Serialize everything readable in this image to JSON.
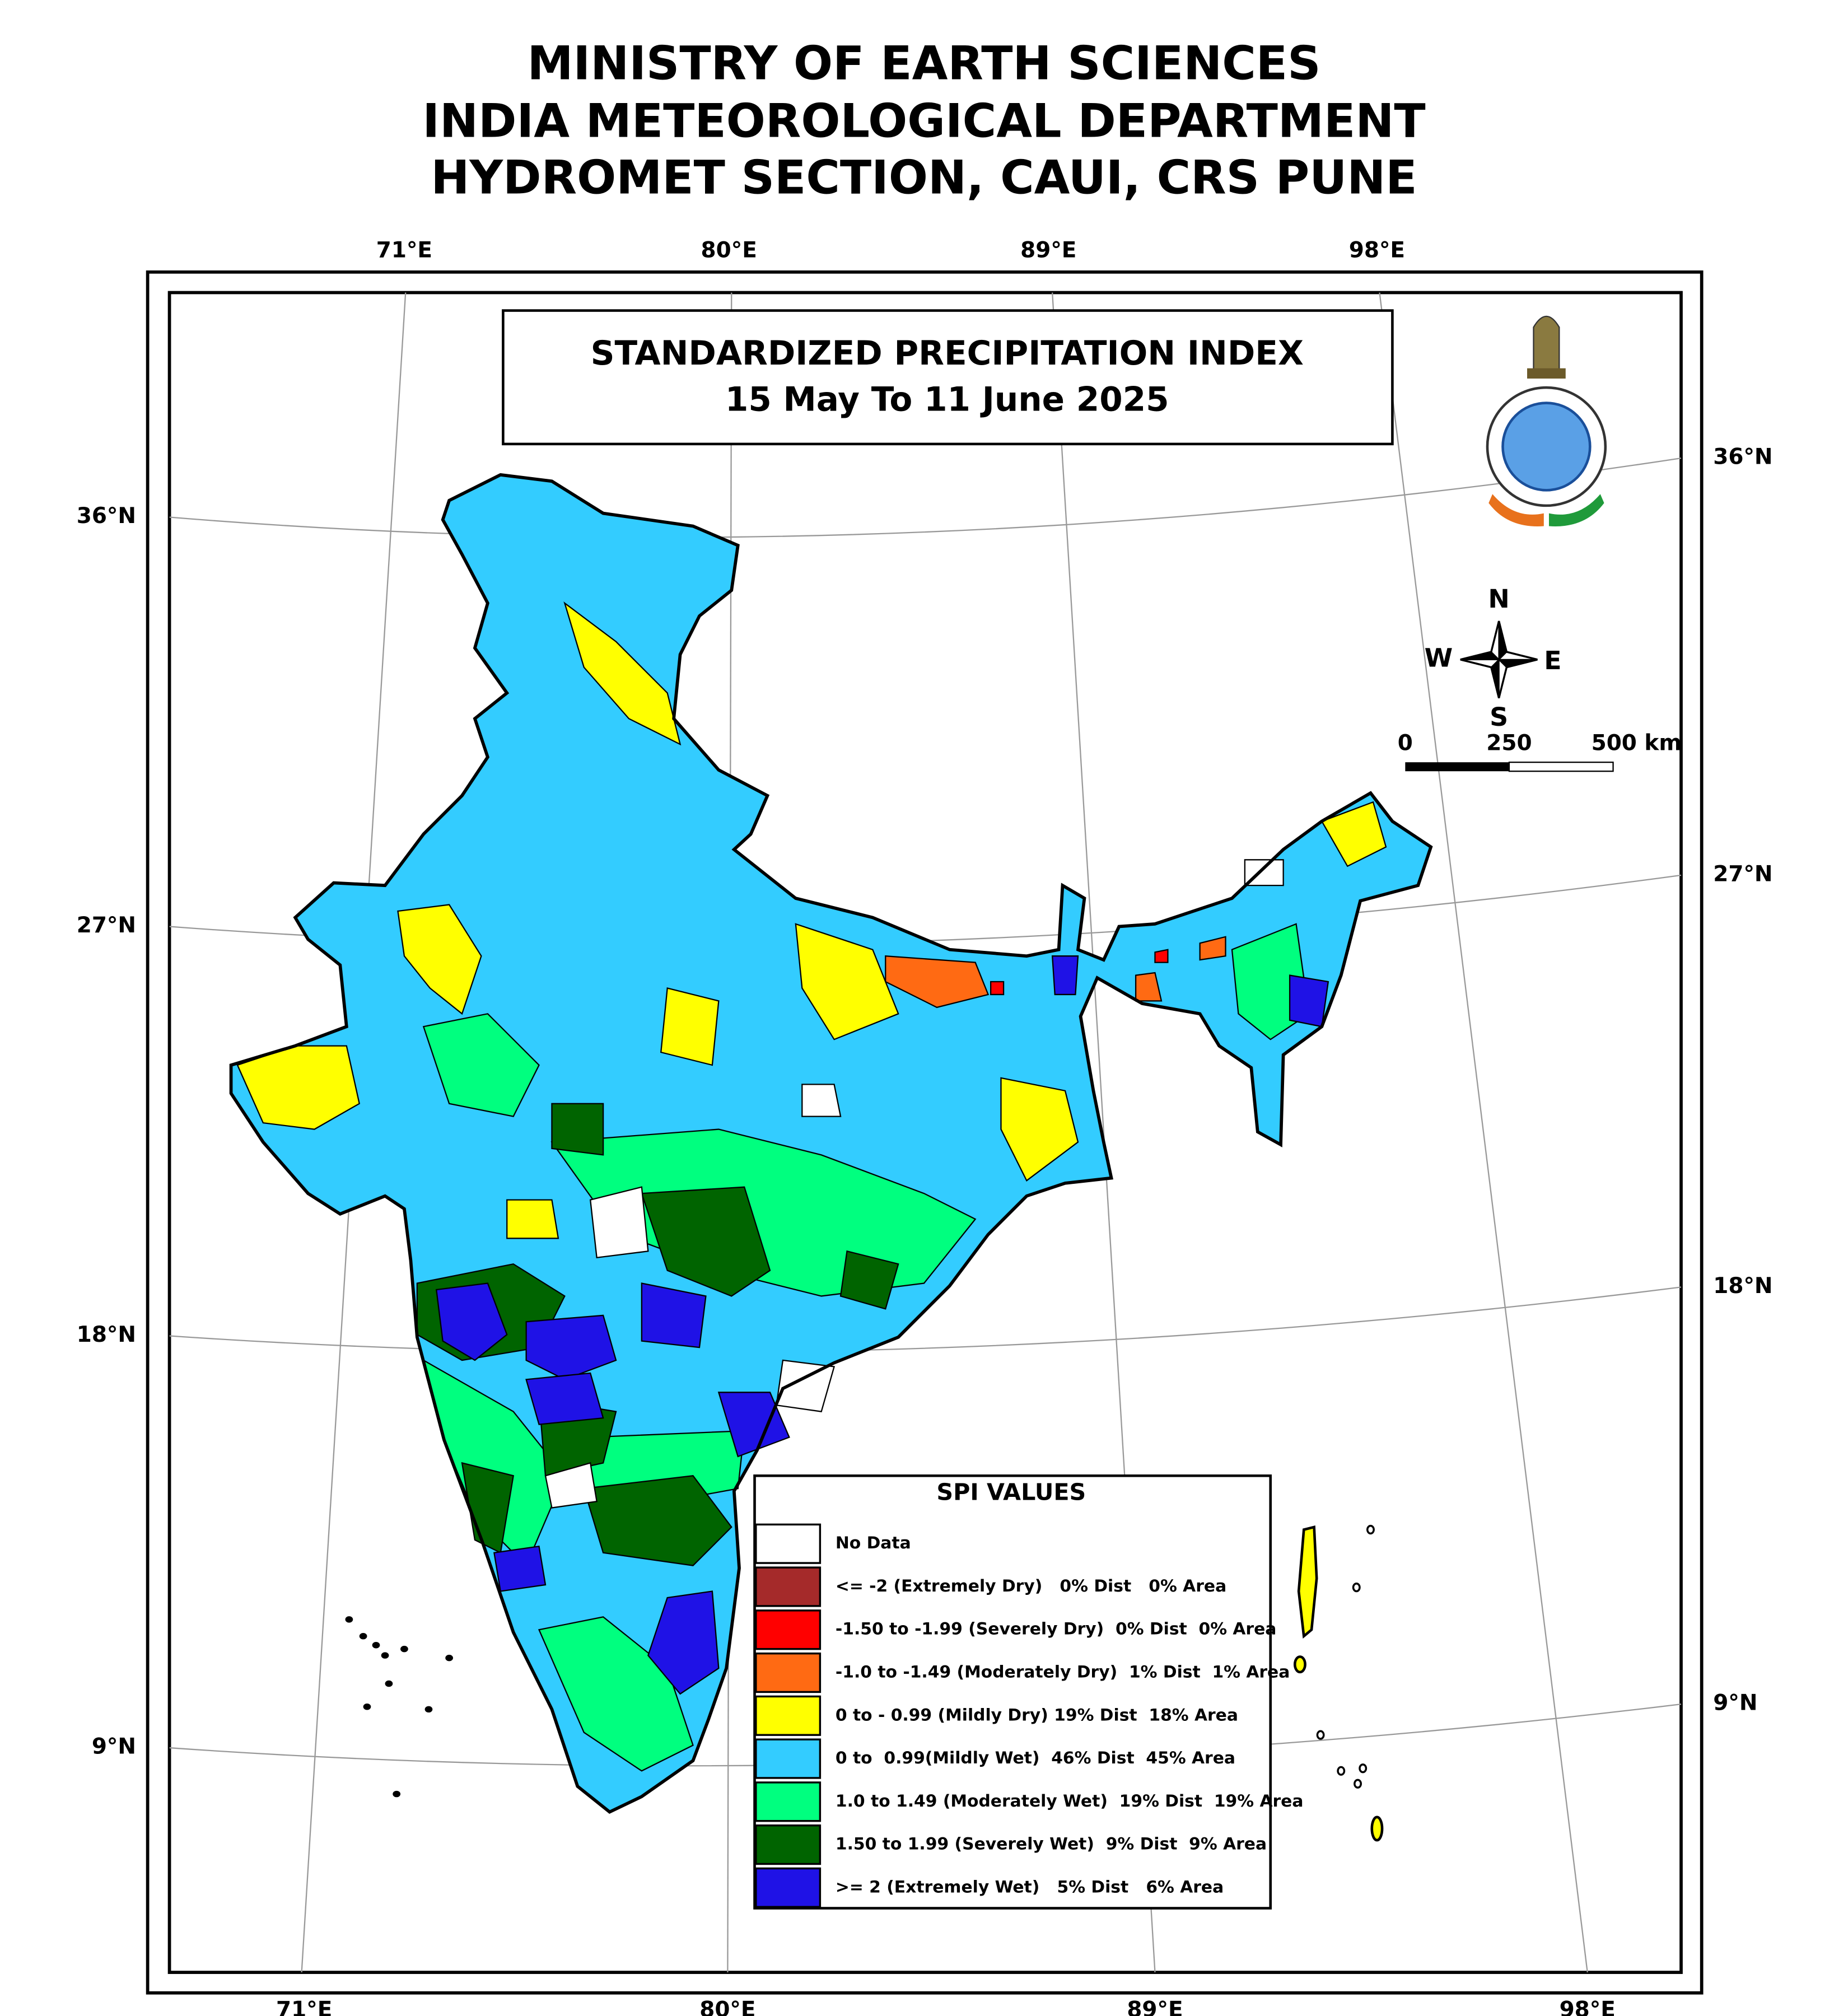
{
  "header": {
    "lines": [
      "MINISTRY OF EARTH SCIENCES",
      "INDIA METEOROLOGICAL DEPARTMENT",
      "HYDROMET SECTION, CAUI, CRS PUNE"
    ]
  },
  "map_box": {
    "title": "STANDARDIZED PRECIPITATION INDEX",
    "subtitle": "15 May To 11 June 2025"
  },
  "graticule": {
    "top_labels": [
      "71°E",
      "80°E",
      "89°E",
      "98°E"
    ],
    "bottom_labels": [
      "71°E",
      "80°E",
      "89°E",
      "98°E"
    ],
    "left_labels": [
      "36°N",
      "27°N",
      "18°N",
      "9°N"
    ],
    "right_labels": [
      "36°N",
      "27°N",
      "18°N",
      "9°N"
    ]
  },
  "compass": {
    "north": "N",
    "south": "S",
    "east": "E",
    "west": "W"
  },
  "scale_bar": {
    "labels": [
      "0",
      "250",
      "500 km"
    ]
  },
  "legend": {
    "title": "SPI VALUES",
    "items": [
      {
        "label": "No Data",
        "color": "#ffffff"
      },
      {
        "label": "<= -2 (Extremely Dry)   0% Dist   0% Area",
        "color": "#a52a2a"
      },
      {
        "label": "-1.50 to -1.99 (Severely Dry)  0% Dist  0% Area",
        "color": "#ff0000"
      },
      {
        "label": "-1.0 to -1.49 (Moderately Dry)  1% Dist  1% Area",
        "color": "#ff6a13"
      },
      {
        "label": "0 to - 0.99 (Mildly Dry) 19% Dist  18% Area",
        "color": "#ffff00"
      },
      {
        "label": "0 to  0.99(Mildly Wet)  46% Dist  45% Area",
        "color": "#33ccff"
      },
      {
        "label": "1.0 to 1.49 (Moderately Wet)  19% Dist  19% Area",
        "color": "#00ff7f"
      },
      {
        "label": "1.50 to 1.99 (Severely Wet)  9% Dist  9% Area",
        "color": "#006400"
      },
      {
        "label": ">= 2 (Extremely Wet)   5% Dist   6% Area",
        "color": "#1f12e6"
      }
    ]
  }
}
